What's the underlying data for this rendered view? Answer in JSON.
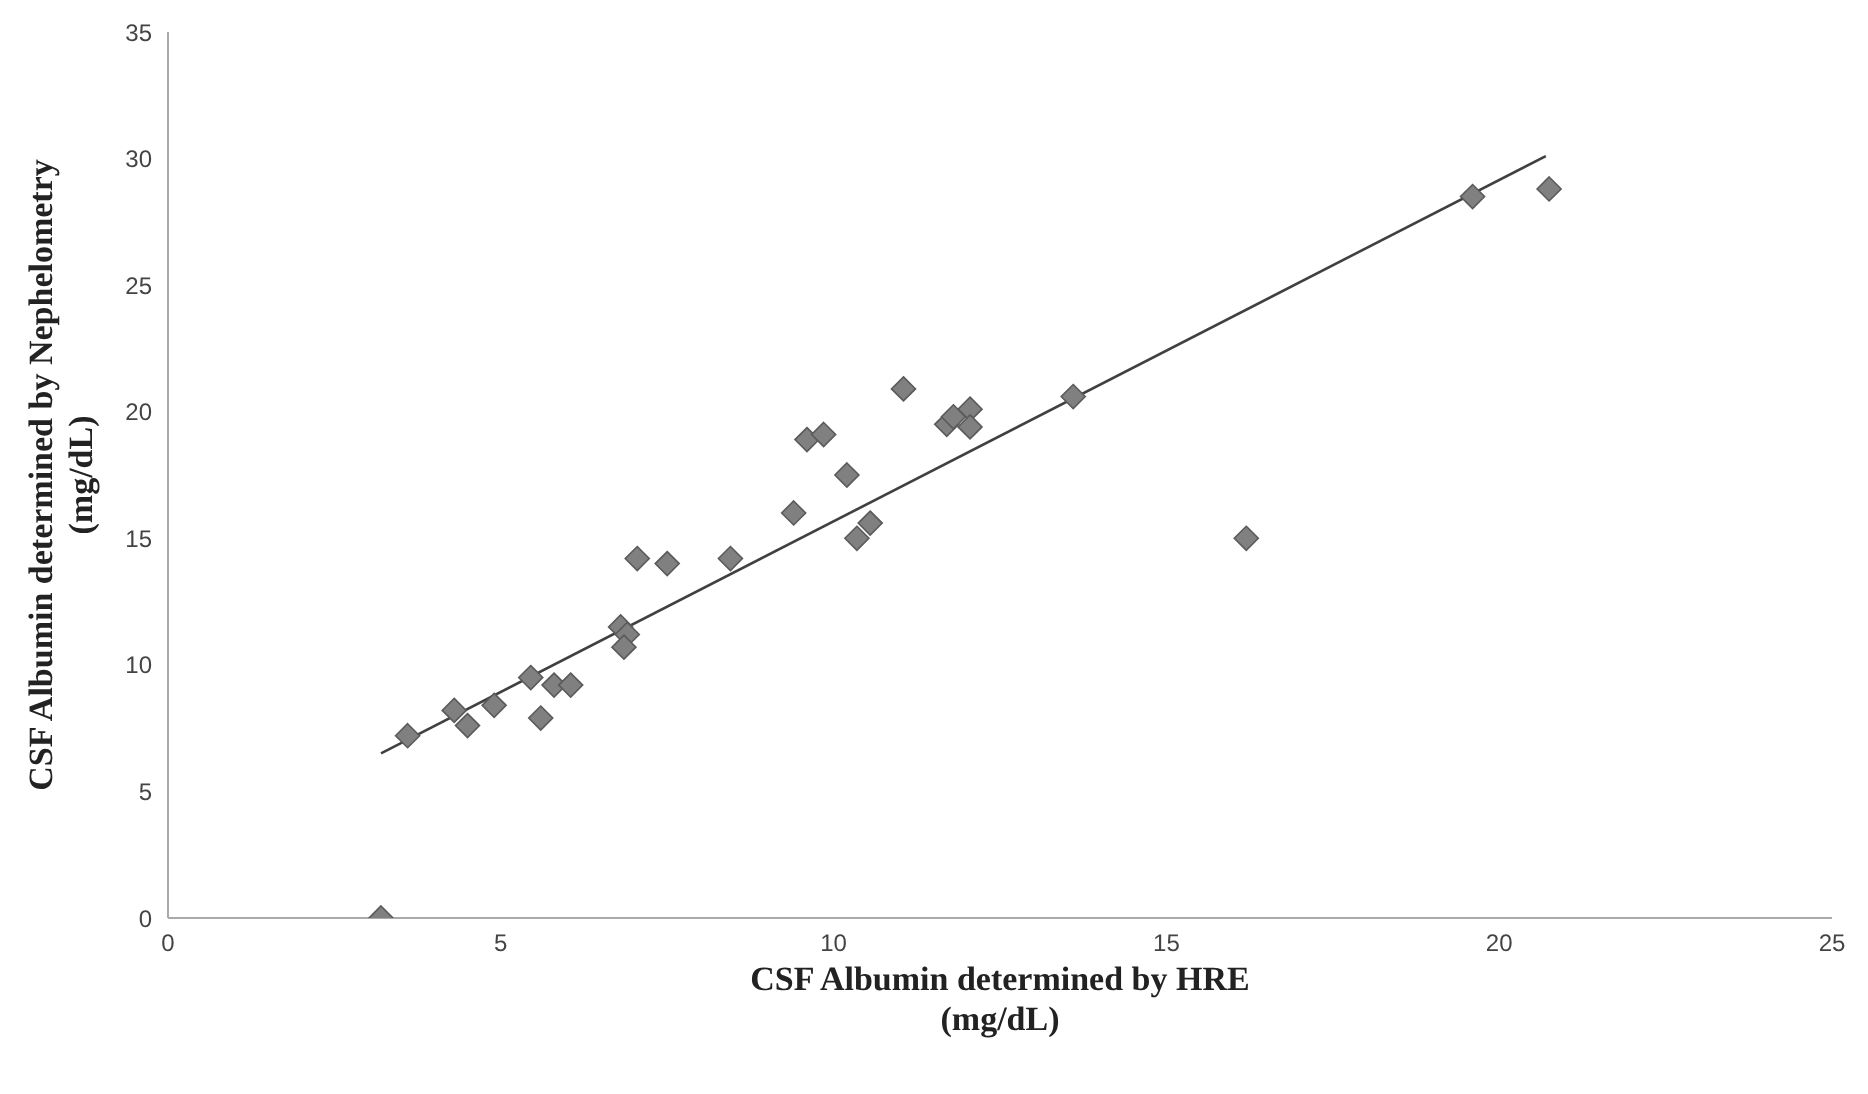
{
  "chart_data": {
    "type": "scatter",
    "xlabel": "CSF Albumin determined by HRE\n(mg/dL)",
    "ylabel": "CSF Albumin determined by Nephelometry\n(mg/dL)",
    "xlim": [
      0,
      25
    ],
    "xticks": [
      0,
      5,
      10,
      15,
      20,
      25
    ],
    "ylim": [
      0,
      35
    ],
    "yticks": [
      0,
      5,
      10,
      15,
      20,
      25,
      30,
      35
    ],
    "grid": false,
    "marker": "diamond",
    "series": [
      {
        "color": "#808080",
        "x": [
          3.2,
          3.6,
          4.3,
          4.5,
          4.9,
          5.45,
          5.6,
          5.8,
          6.05,
          6.8,
          6.9,
          6.85,
          7.05,
          7.5,
          8.45,
          9.4,
          9.6,
          9.85,
          10.2,
          10.35,
          10.55,
          11.05,
          11.7,
          11.8,
          12.05,
          12.05,
          13.6,
          16.2,
          19.6,
          20.75
        ],
        "values": [
          0,
          7.2,
          8.2,
          7.6,
          8.4,
          9.5,
          7.9,
          9.2,
          9.2,
          11.5,
          11.2,
          10.7,
          14.2,
          14.0,
          14.2,
          16.0,
          18.9,
          19.1,
          17.5,
          15.0,
          15.6,
          20.9,
          19.5,
          19.8,
          20.1,
          19.4,
          20.6,
          15.0,
          28.5,
          28.8
        ]
      },
      {
        "type": "line",
        "color": "#404040",
        "marker": "none",
        "line_style": "solid",
        "x": [
          3.2,
          20.7
        ],
        "values": [
          6.5,
          30.1
        ]
      }
    ]
  }
}
